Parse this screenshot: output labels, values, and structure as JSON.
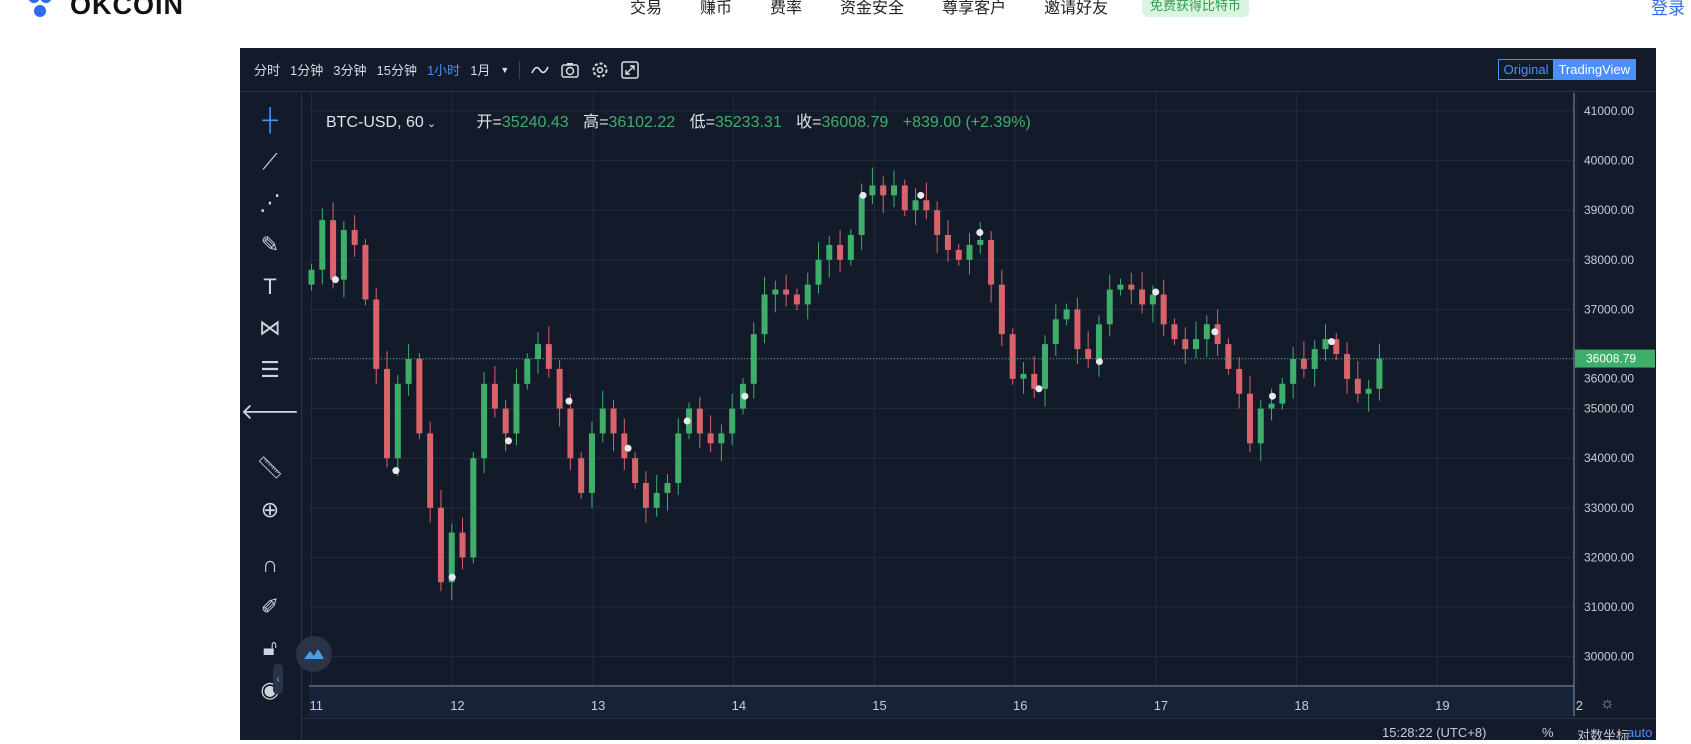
{
  "header": {
    "logo": "OKCOIN",
    "nav": [
      "交易",
      "赚币",
      "费率",
      "资金安全",
      "尊享客户",
      "邀请好友"
    ],
    "badge": "免费获得比特币",
    "login": "登录"
  },
  "toolbar": {
    "intervals": [
      "分时",
      "1分钟",
      "3分钟",
      "15分钟",
      "1小时",
      "1月"
    ],
    "active_interval": "1小时",
    "view_original": "Original",
    "view_tradingview": "TradingView",
    "active_view": "TradingView"
  },
  "legend": {
    "symbol": "BTC-USD, 60",
    "open_label": "开=",
    "open": "35240.43",
    "high_label": "高=",
    "high": "36102.22",
    "low_label": "低=",
    "low": "35233.31",
    "close_label": "收=",
    "close": "36008.79",
    "change": "+839.00 (+2.39%)"
  },
  "bottom": {
    "time": "15:28:22 (UTC+8)",
    "percent": "%",
    "log": "对数坐标",
    "auto": "auto"
  },
  "colors": {
    "up": "#3fae6a",
    "down": "#d9626b",
    "background": "#131a2a",
    "accent": "#4a90ff"
  },
  "chart_data": {
    "type": "candlestick",
    "symbol": "BTC-USD",
    "interval": "60",
    "ylim": [
      29700,
      41500
    ],
    "yticks": [
      41000,
      40000,
      39000,
      38000,
      37000,
      36000,
      35000,
      34000,
      33000,
      32000,
      31000,
      30000
    ],
    "xticks": [
      "11",
      "12",
      "13",
      "14",
      "15",
      "16",
      "17",
      "18",
      "19",
      "2"
    ],
    "x_start_day": 11,
    "x_end_day": 18.59,
    "last_price": "36008.79",
    "closes": [
      37800,
      38800,
      37600,
      38600,
      38300,
      37200,
      35800,
      34000,
      35500,
      36000,
      34500,
      33000,
      31500,
      32500,
      32000,
      34000,
      35500,
      35000,
      34500,
      35500,
      36000,
      36300,
      35800,
      35000,
      34000,
      33300,
      34500,
      35000,
      34500,
      34000,
      33500,
      33000,
      33300,
      33500,
      34500,
      35000,
      34500,
      34300,
      34500,
      35000,
      35500,
      36500,
      37300,
      37400,
      37300,
      37100,
      37500,
      38000,
      38300,
      38000,
      38500,
      39300,
      39500,
      39300,
      39500,
      39000,
      39200,
      39000,
      38500,
      38200,
      38000,
      38300,
      38400,
      37500,
      36500,
      35600,
      35700,
      35400,
      36300,
      36800,
      37000,
      36200,
      36000,
      36700,
      37400,
      37500,
      37400,
      37100,
      37300,
      36700,
      36400,
      36200,
      36400,
      36700,
      36300,
      35800,
      35300,
      34300,
      35000,
      35100,
      35500,
      36000,
      35800,
      36200,
      36400,
      36100,
      35600,
      35300,
      35400,
      36009
    ],
    "markers": [
      {
        "day": 11.17,
        "price": 37600
      },
      {
        "day": 11.6,
        "price": 33750
      },
      {
        "day": 12.0,
        "price": 31600
      },
      {
        "day": 12.4,
        "price": 34350
      },
      {
        "day": 12.83,
        "price": 35150
      },
      {
        "day": 13.25,
        "price": 34200
      },
      {
        "day": 13.67,
        "price": 34750
      },
      {
        "day": 14.08,
        "price": 35250
      },
      {
        "day": 14.92,
        "price": 39300
      },
      {
        "day": 15.33,
        "price": 39300
      },
      {
        "day": 15.75,
        "price": 38550
      },
      {
        "day": 16.17,
        "price": 35400
      },
      {
        "day": 16.6,
        "price": 35950
      },
      {
        "day": 17.0,
        "price": 37350
      },
      {
        "day": 17.42,
        "price": 36550
      },
      {
        "day": 17.83,
        "price": 35250
      },
      {
        "day": 18.25,
        "price": 36350
      }
    ]
  }
}
